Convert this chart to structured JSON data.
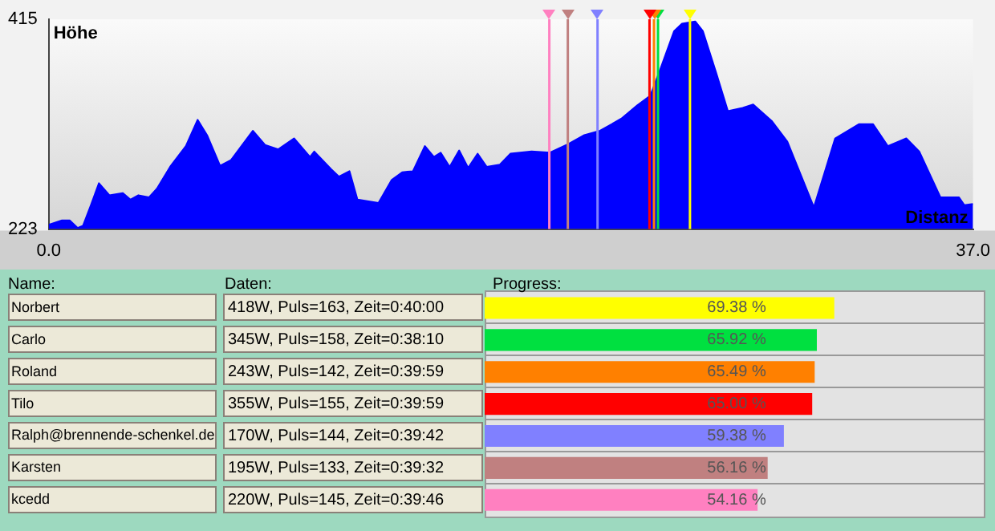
{
  "chart_data": [
    {
      "type": "area",
      "xlabel": "Distanz",
      "ylabel": "Höhe",
      "xlim": [
        0,
        37
      ],
      "ylim": [
        223,
        415
      ],
      "xticks": [
        {
          "value": 0,
          "label": "0.0"
        },
        {
          "value": 37,
          "label": "37.0"
        }
      ],
      "yticks": [
        223,
        415
      ],
      "x": [
        0,
        0.53,
        0.84,
        1.16,
        1.37,
        1.69,
        2.01,
        2.43,
        2.96,
        3.27,
        3.59,
        4.01,
        4.33,
        4.86,
        5.49,
        5.96,
        6.34,
        6.86,
        7.29,
        8.17,
        8.66,
        9.19,
        9.82,
        10.46,
        10.63,
        11.3,
        11.62,
        12.04,
        12.36,
        13.2,
        13.73,
        14.15,
        14.58,
        15.06,
        15.42,
        15.69,
        16.05,
        16.43,
        16.79,
        17.17,
        17.53,
        18.06,
        18.48,
        19.33,
        20.07,
        20.81,
        21.44,
        22.07,
        22.92,
        23.55,
        24.08,
        24.51,
        25.03,
        25.35,
        25.88,
        26.19,
        26.72,
        27.19,
        27.78,
        28.2,
        28.94,
        29.57,
        30.63,
        31.48,
        32.43,
        33.0,
        33.59,
        34.33,
        34.85,
        35.7,
        36.44,
        36.65,
        37.0
      ],
      "series": [
        {
          "color": "#0000ff",
          "values": [
            227,
            231,
            231,
            224,
            226,
            245,
            265,
            254,
            256,
            250,
            254,
            252,
            260,
            280,
            299,
            323,
            309,
            281,
            286,
            313,
            300,
            296,
            306,
            289,
            294,
            278,
            271,
            276,
            250,
            247,
            268,
            275,
            276,
            299,
            289,
            293,
            280,
            295,
            279,
            292,
            280,
            282,
            292,
            294,
            293,
            301,
            309,
            313,
            324,
            336,
            345,
            371,
            404,
            411,
            413,
            404,
            366,
            331,
            334,
            337,
            322,
            303,
            243,
            306,
            319,
            319,
            299,
            306,
            294,
            252,
            252,
            245,
            246
          ]
        }
      ],
      "ref_lines": [
        {
          "axis": "x",
          "value": 25.67,
          "color": "#ffff00"
        },
        {
          "axis": "x",
          "value": 24.39,
          "color": "#00e040"
        },
        {
          "axis": "x",
          "value": 24.23,
          "color": "#ff8000"
        },
        {
          "axis": "x",
          "value": 24.05,
          "color": "#ff0000"
        },
        {
          "axis": "x",
          "value": 21.97,
          "color": "#8080ff"
        },
        {
          "axis": "x",
          "value": 20.78,
          "color": "#c08080"
        },
        {
          "axis": "x",
          "value": 20.04,
          "color": "#ff80c0"
        }
      ],
      "grid": false,
      "legend": false
    },
    {
      "type": "bar",
      "orientation": "horizontal",
      "categories": [
        "Norbert",
        "Carlo",
        "Roland",
        "Tilo",
        "Ralph@brennende-schenkel.de",
        "Karsten",
        "kcedd"
      ],
      "values": [
        69.38,
        65.92,
        65.49,
        65.0,
        59.38,
        56.16,
        54.16
      ],
      "colors": [
        "#ffff00",
        "#00e040",
        "#ff8000",
        "#ff0000",
        "#8080ff",
        "#c08080",
        "#ff80c0"
      ],
      "value_labels": [
        "69.38 %",
        "65.92 %",
        "65.49 %",
        "65.00 %",
        "59.38 %",
        "56.16 %",
        "54.16 %"
      ],
      "xlim": [
        0,
        100
      ],
      "tick_labels": "y",
      "legend": false,
      "annotations": [
        "Name:",
        "Daten:",
        "Progress:",
        "418W, Puls=163, Zeit=0:40:00",
        "345W, Puls=158, Zeit=0:38:10",
        "243W, Puls=142, Zeit=0:39:59",
        "355W, Puls=155, Zeit=0:39:59",
        "170W, Puls=144, Zeit=0:39:42",
        "195W, Puls=133, Zeit=0:39:32",
        "220W, Puls=145, Zeit=0:39:46"
      ]
    }
  ]
}
